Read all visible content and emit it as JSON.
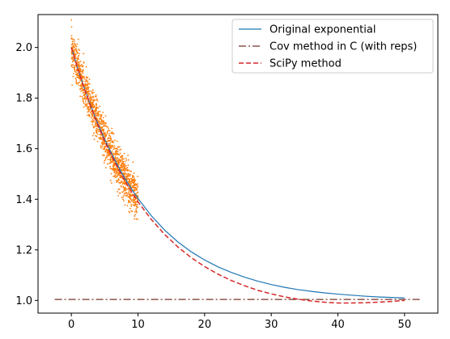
{
  "chart_data": {
    "type": "line",
    "title": "",
    "xlabel": "",
    "ylabel": "",
    "xlim": [
      -5,
      55
    ],
    "ylim": [
      0.95,
      2.13
    ],
    "x_ticks": [
      0,
      10,
      20,
      30,
      40,
      50
    ],
    "y_ticks": [
      1.0,
      1.2,
      1.4,
      1.6,
      1.8,
      2.0
    ],
    "grid": false,
    "legend_position": "top-right",
    "series": [
      {
        "name": "Original exponential",
        "style": "solid",
        "color": "#1f77b4",
        "x": [
          0,
          1,
          2,
          3,
          4,
          5,
          6,
          7,
          8,
          9,
          10,
          12,
          14,
          16,
          18,
          20,
          22,
          24,
          26,
          28,
          30,
          32,
          34,
          36,
          38,
          40,
          42,
          44,
          46,
          48,
          50
        ],
        "y": [
          2.0,
          1.914,
          1.835,
          1.763,
          1.697,
          1.637,
          1.582,
          1.531,
          1.484,
          1.442,
          1.403,
          1.335,
          1.278,
          1.231,
          1.192,
          1.16,
          1.133,
          1.111,
          1.092,
          1.076,
          1.063,
          1.052,
          1.043,
          1.036,
          1.03,
          1.025,
          1.021,
          1.017,
          1.014,
          1.012,
          1.01
        ]
      },
      {
        "name": "Cov method in C (with reps)",
        "style": "dashdot",
        "color": "#8c564b",
        "x": [
          -2.5,
          52.5
        ],
        "y": [
          1.004,
          1.004
        ]
      },
      {
        "name": "SciPy method",
        "style": "dashed",
        "color": "#d62728",
        "x": [
          0,
          1,
          2,
          3,
          4,
          5,
          6,
          7,
          8,
          9,
          10,
          12,
          14,
          16,
          18,
          20,
          22,
          24,
          26,
          28,
          30,
          32,
          34,
          36,
          38,
          40,
          42,
          44,
          46,
          48,
          50
        ],
        "y": [
          2.0,
          1.913,
          1.833,
          1.76,
          1.692,
          1.63,
          1.574,
          1.522,
          1.474,
          1.43,
          1.39,
          1.32,
          1.261,
          1.211,
          1.169,
          1.134,
          1.104,
          1.079,
          1.058,
          1.04,
          1.026,
          1.014,
          1.005,
          0.998,
          0.993,
          0.99,
          0.99,
          0.991,
          0.993,
          0.996,
          1.0
        ]
      }
    ],
    "scatter": {
      "color": "#ff7f0e",
      "x_range": [
        0,
        10
      ],
      "spread": 0.04,
      "count": 1400
    }
  }
}
